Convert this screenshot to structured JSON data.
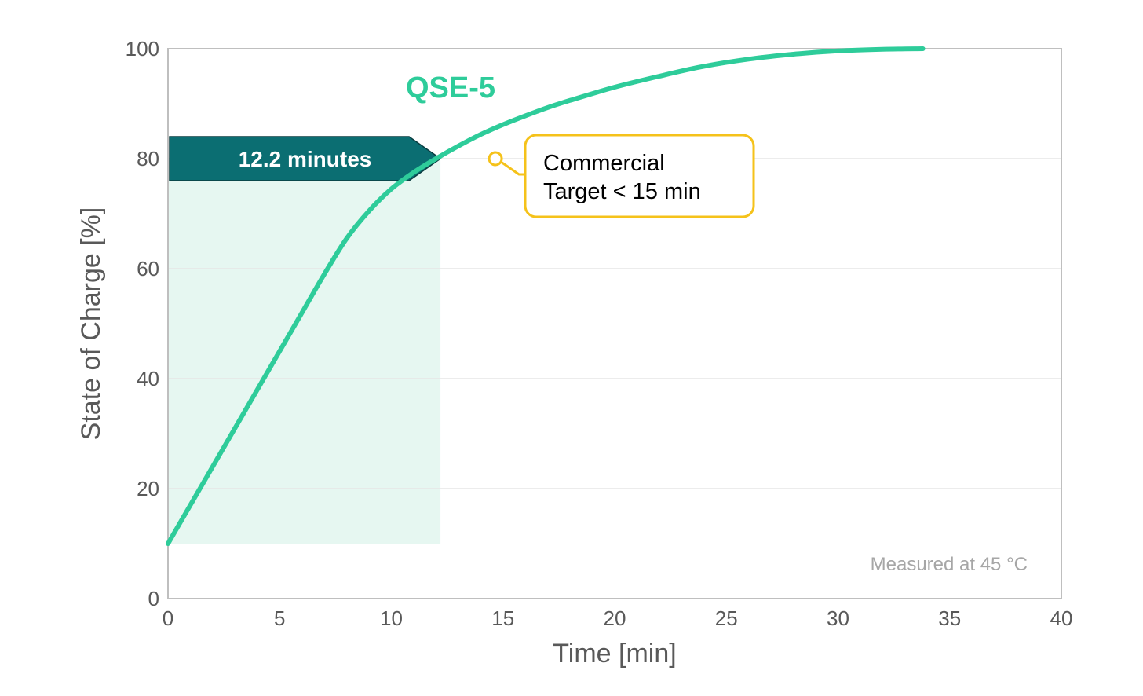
{
  "chart_data": {
    "type": "line",
    "xlabel": "Time [min]",
    "ylabel": "State of Charge [%]",
    "xlim": [
      0,
      40
    ],
    "ylim": [
      0,
      100
    ],
    "xticks": [
      "0",
      "5",
      "10",
      "15",
      "20",
      "25",
      "30",
      "35",
      "40"
    ],
    "yticks": [
      "0",
      "20",
      "40",
      "60",
      "80",
      "100"
    ],
    "grid": "horizontal",
    "series": [
      {
        "name": "QSE-5",
        "color": "#2ecc9a",
        "x": [
          0,
          1,
          2,
          3,
          4,
          5,
          6,
          7,
          8,
          9,
          10,
          11,
          12,
          13,
          14,
          15,
          16,
          17,
          18,
          20,
          22,
          24,
          26,
          28,
          30,
          32,
          33.8
        ],
        "y": [
          10,
          17,
          24,
          31,
          38,
          45,
          52,
          59,
          65.5,
          70.5,
          74.5,
          77.5,
          80,
          82.3,
          84.4,
          86.2,
          87.8,
          89.3,
          90.6,
          93,
          95,
          96.8,
          98.1,
          99,
          99.6,
          99.9,
          100
        ]
      }
    ],
    "highlight": {
      "x_range": [
        0,
        12.2
      ],
      "y_range": [
        10,
        80
      ],
      "fill": "#e6f7f1"
    },
    "annotations": {
      "arrow_label": "12.2 minutes",
      "arrow_color": "#0b6e72",
      "callout_lines": [
        "Commercial",
        "Target < 15 min"
      ],
      "callout_border": "#f5c21a",
      "callout_point": {
        "x": 14.8,
        "y": 80
      },
      "note": "Measured at 45 °C",
      "note_color": "#a6a6a6"
    }
  }
}
